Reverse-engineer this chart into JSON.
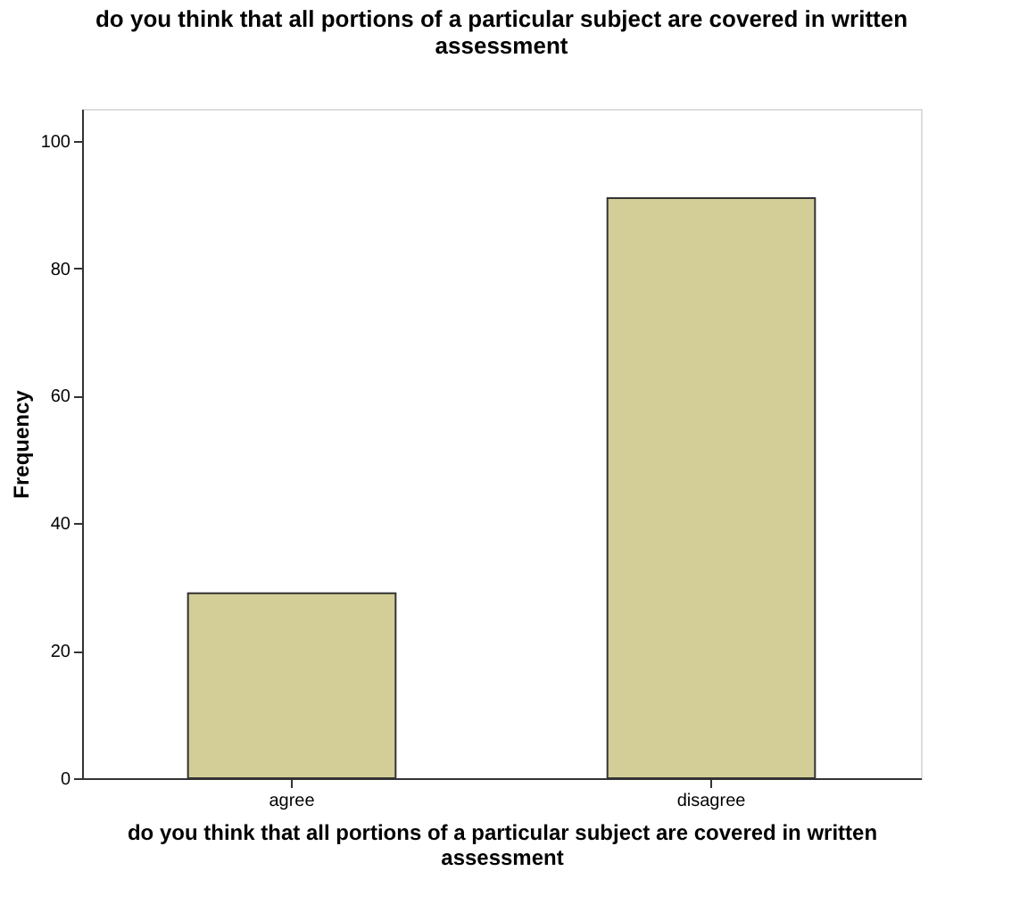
{
  "chart_data": {
    "type": "bar",
    "title": "do you think that all portions of a particular subject are covered in written assessment",
    "xlabel": "do you think that all portions of a particular subject are covered in written assessment",
    "ylabel": "Frequency",
    "categories": [
      "agree",
      "disagree"
    ],
    "values": [
      29,
      91
    ],
    "color": "#d3ce98",
    "ylim": [
      0,
      105
    ],
    "yticks": [
      0,
      20,
      40,
      60,
      80,
      100
    ],
    "grid": false
  }
}
